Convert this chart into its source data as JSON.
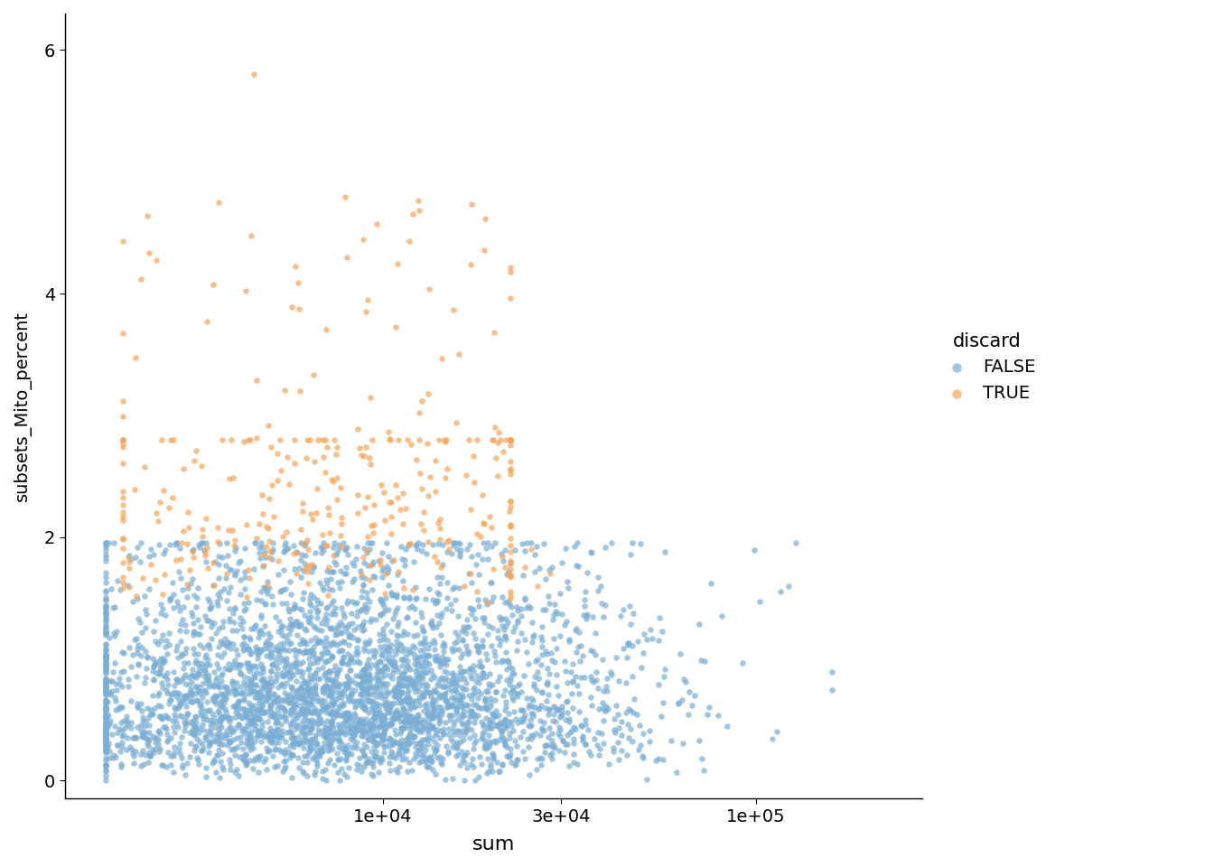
{
  "xlabel": "sum",
  "ylabel": "subsets_Mito_percent",
  "legend_title": "discard",
  "false_color": "#7BAED4",
  "true_color": "#F4A55B",
  "point_size": 22,
  "point_alpha": 0.7,
  "background_color": "#ffffff",
  "seed": 42,
  "yticks": [
    0,
    2,
    4,
    6
  ],
  "xtick_vals": [
    10000,
    30000,
    100000
  ],
  "xtick_labels": [
    "1e+04",
    "3e+04",
    "1e+05"
  ],
  "xlim": [
    1400,
    280000
  ],
  "ylim": [
    -0.15,
    6.3
  ]
}
